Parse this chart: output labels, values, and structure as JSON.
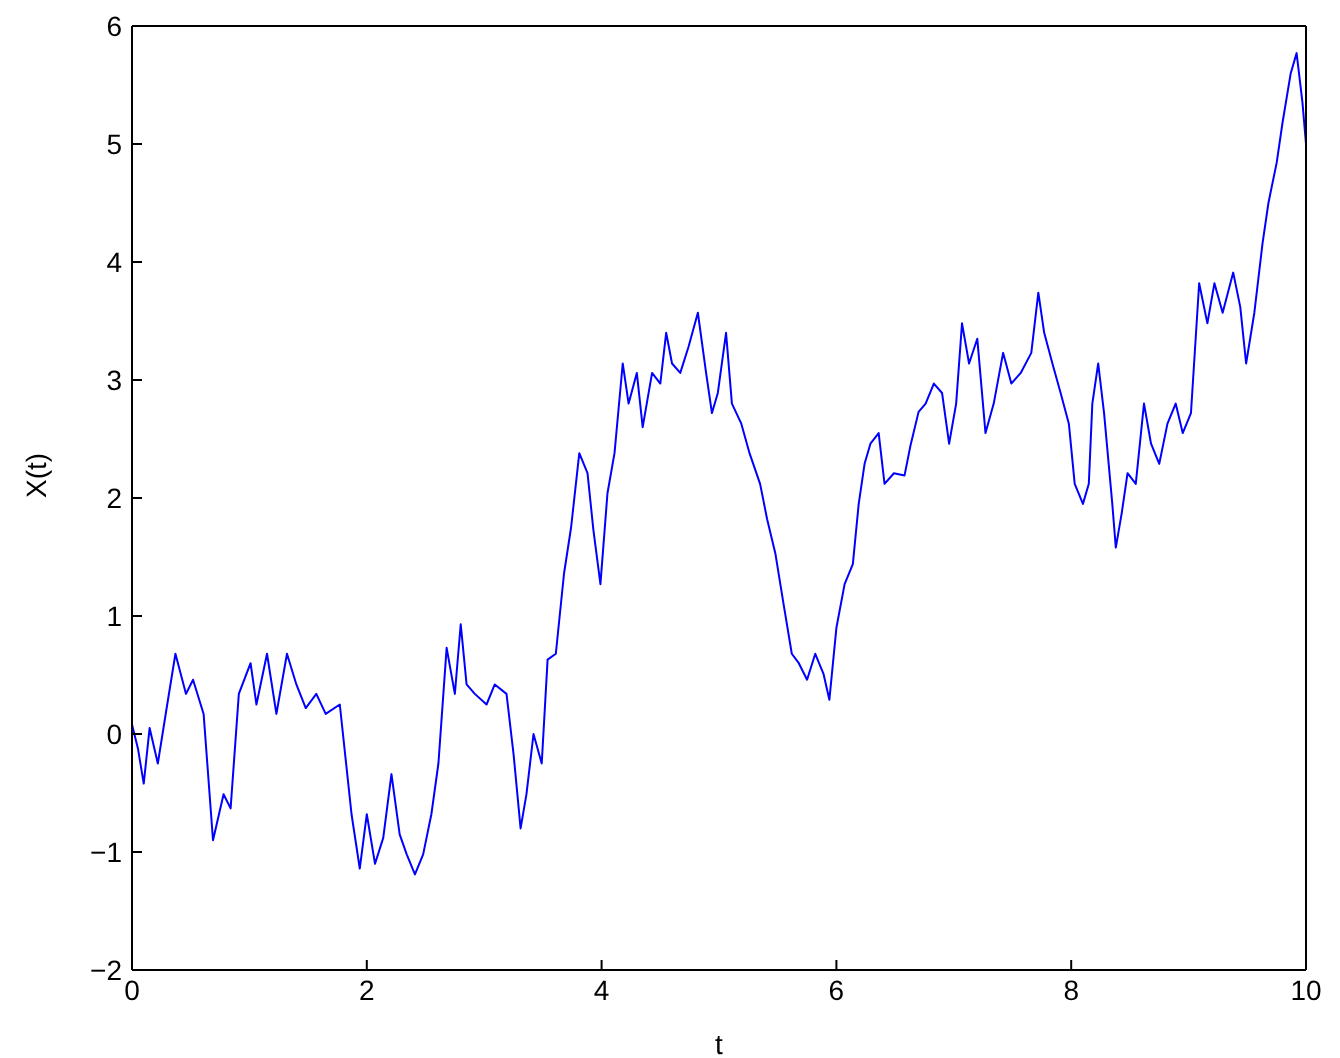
{
  "chart_data": {
    "type": "line",
    "xlabel": "t",
    "ylabel": "X(t)",
    "x": [
      0,
      0.05,
      0.1,
      0.15,
      0.22,
      0.3,
      0.37,
      0.46,
      0.52,
      0.61,
      0.69,
      0.78,
      0.84,
      0.91,
      1.01,
      1.06,
      1.15,
      1.23,
      1.32,
      1.4,
      1.48,
      1.57,
      1.65,
      1.77,
      1.87,
      1.94,
      2.0,
      2.07,
      2.14,
      2.21,
      2.28,
      2.34,
      2.41,
      2.48,
      2.55,
      2.61,
      2.68,
      2.75,
      2.8,
      2.85,
      2.92,
      3.02,
      3.09,
      3.19,
      3.25,
      3.31,
      3.36,
      3.42,
      3.49,
      3.54,
      3.61,
      3.68,
      3.74,
      3.81,
      3.88,
      3.93,
      3.99,
      4.05,
      4.11,
      4.18,
      4.23,
      4.3,
      4.35,
      4.43,
      4.5,
      4.55,
      4.6,
      4.67,
      4.74,
      4.82,
      4.89,
      4.94,
      4.99,
      5.06,
      5.11,
      5.19,
      5.26,
      5.35,
      5.41,
      5.48,
      5.55,
      5.62,
      5.68,
      5.75,
      5.82,
      5.89,
      5.94,
      6.0,
      6.07,
      6.14,
      6.19,
      6.24,
      6.29,
      6.36,
      6.41,
      6.49,
      6.58,
      6.63,
      6.7,
      6.76,
      6.83,
      6.9,
      6.96,
      7.02,
      7.07,
      7.13,
      7.2,
      7.27,
      7.34,
      7.42,
      7.49,
      7.57,
      7.66,
      7.72,
      7.77,
      7.84,
      7.91,
      7.98,
      8.03,
      8.1,
      8.15,
      8.18,
      8.23,
      8.28,
      8.35,
      8.38,
      8.43,
      8.48,
      8.55,
      8.62,
      8.68,
      8.75,
      8.82,
      8.89,
      8.95,
      9.02,
      9.09,
      9.16,
      9.22,
      9.29,
      9.38,
      9.44,
      9.49,
      9.56,
      9.63,
      9.68,
      9.75,
      9.8,
      9.87,
      9.92,
      9.97,
      10.0
    ],
    "series": [
      {
        "color": "#0000ff",
        "values": [
          0.08,
          -0.12,
          -0.42,
          0.05,
          -0.25,
          0.25,
          0.68,
          0.34,
          0.46,
          0.17,
          -0.9,
          -0.51,
          -0.63,
          0.34,
          0.6,
          0.25,
          0.68,
          0.17,
          0.68,
          0.42,
          0.22,
          0.34,
          0.17,
          0.25,
          -0.68,
          -1.14,
          -0.68,
          -1.1,
          -0.88,
          -0.34,
          -0.85,
          -1.02,
          -1.19,
          -1.02,
          -0.68,
          -0.25,
          0.73,
          0.34,
          0.93,
          0.42,
          0.34,
          0.25,
          0.42,
          0.34,
          -0.17,
          -0.8,
          -0.51,
          0.0,
          -0.25,
          0.63,
          0.68,
          1.36,
          1.75,
          2.38,
          2.21,
          1.73,
          1.27,
          2.04,
          2.38,
          3.14,
          2.8,
          3.06,
          2.6,
          3.06,
          2.97,
          3.4,
          3.14,
          3.06,
          3.28,
          3.57,
          3.06,
          2.72,
          2.89,
          3.4,
          2.8,
          2.63,
          2.38,
          2.12,
          1.82,
          1.53,
          1.1,
          0.68,
          0.6,
          0.46,
          0.68,
          0.51,
          0.29,
          0.9,
          1.27,
          1.44,
          1.95,
          2.29,
          2.46,
          2.55,
          2.12,
          2.21,
          2.19,
          2.44,
          2.73,
          2.8,
          2.97,
          2.89,
          2.46,
          2.8,
          3.48,
          3.14,
          3.35,
          2.55,
          2.8,
          3.23,
          2.97,
          3.06,
          3.23,
          3.74,
          3.4,
          3.14,
          2.89,
          2.63,
          2.12,
          1.95,
          2.12,
          2.8,
          3.14,
          2.72,
          1.95,
          1.58,
          1.87,
          2.21,
          2.12,
          2.8,
          2.46,
          2.29,
          2.63,
          2.8,
          2.55,
          2.72,
          3.82,
          3.48,
          3.82,
          3.57,
          3.91,
          3.62,
          3.14,
          3.57,
          4.16,
          4.5,
          4.84,
          5.18,
          5.6,
          5.77,
          5.35,
          5.0
        ]
      }
    ],
    "xlim": [
      0,
      10
    ],
    "xticks": [
      0,
      2,
      4,
      6,
      8,
      10
    ],
    "ylim": [
      -2,
      6
    ],
    "yticks": [
      -2,
      -1,
      0,
      1,
      2,
      3,
      4,
      5,
      6
    ],
    "grid": false,
    "legend": false
  }
}
